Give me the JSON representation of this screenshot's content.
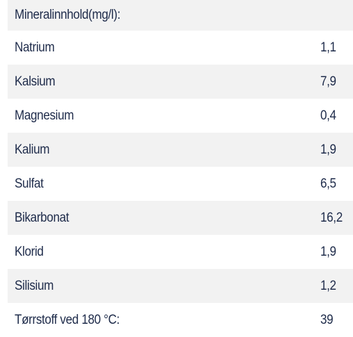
{
  "table": {
    "header": "Mineralinnhold(mg/l):",
    "rows": [
      [
        "Natrium",
        "1,1"
      ],
      [
        "Kalsium",
        "7,9"
      ],
      [
        "Magnesium",
        "0,4"
      ],
      [
        "Kalium",
        "1,9"
      ],
      [
        "Sulfat",
        "6,5"
      ],
      [
        "Bikarbonat",
        "16,2"
      ],
      [
        "Klorid",
        "1,9"
      ],
      [
        "Silisium",
        "1,2"
      ],
      [
        "Tørrstoff ved 180 °C:",
        "39"
      ]
    ]
  }
}
